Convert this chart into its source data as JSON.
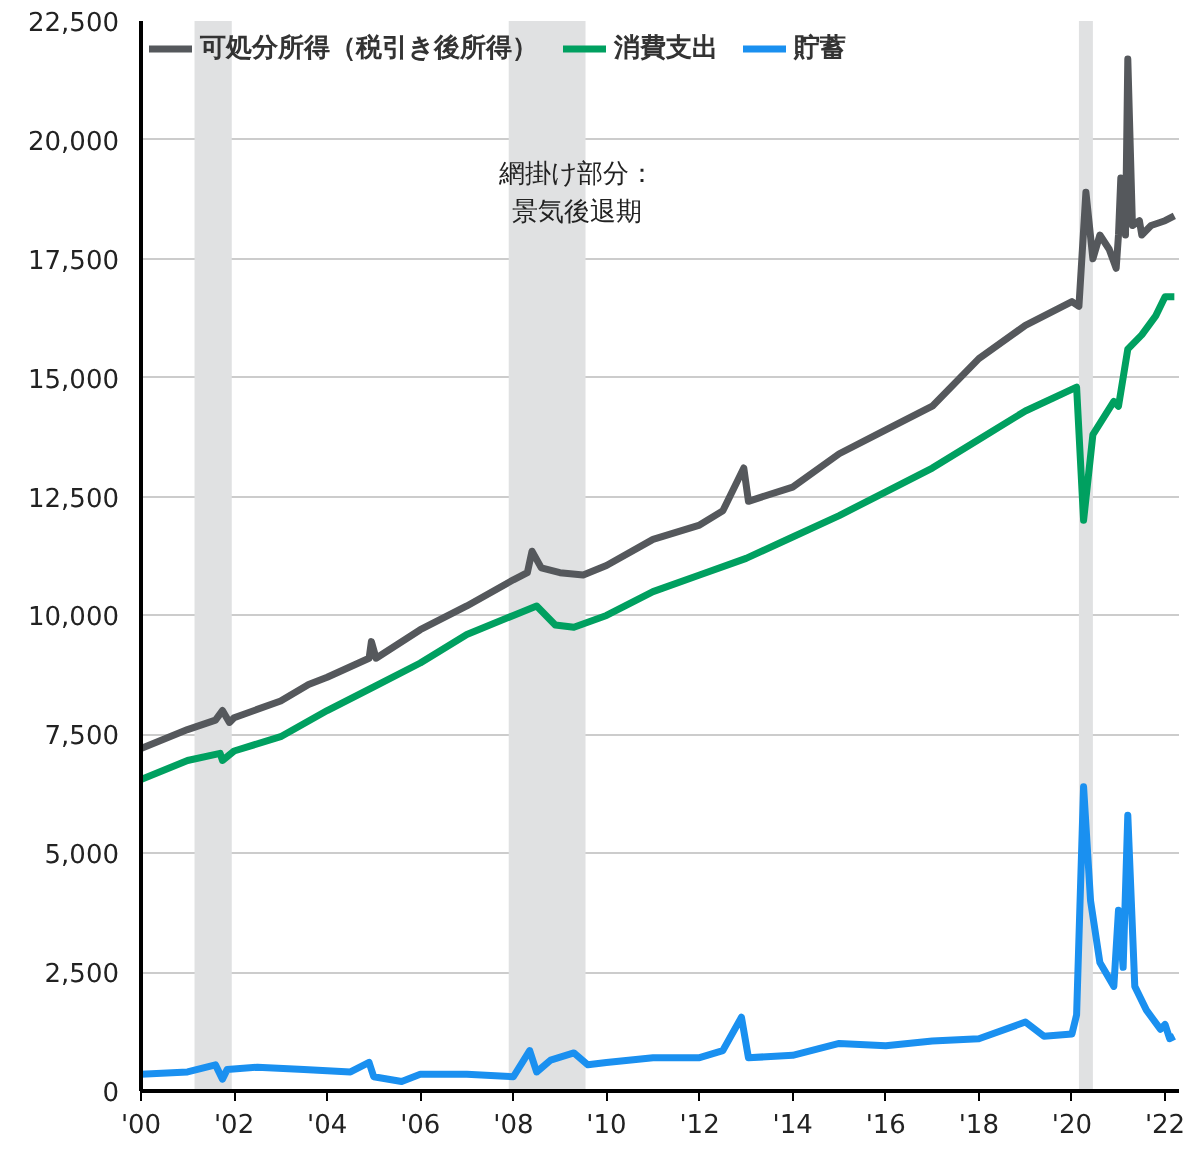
{
  "chart_data": {
    "type": "line",
    "x": [
      2000.0,
      2001.0,
      2001.6,
      2001.75,
      2001.9,
      2002.0,
      2003.0,
      2003.6,
      2004.0,
      2004.9,
      2004.95,
      2005.05,
      2006.0,
      2007.0,
      2008.0,
      2008.3,
      2008.4,
      2008.6,
      2009.0,
      2009.5,
      2010.0,
      2011.0,
      2012.0,
      2012.5,
      2012.95,
      2013.05,
      2014.0,
      2015.0,
      2016.0,
      2017.0,
      2018.0,
      2019.0,
      2020.0,
      2020.15,
      2020.3,
      2020.45,
      2020.6,
      2020.8,
      2020.95,
      2021.0,
      2021.05,
      2021.15,
      2021.2,
      2021.3,
      2021.45,
      2021.5,
      2021.7,
      2022.0,
      2022.2
    ],
    "series": [
      {
        "name": "可処分所得（税引き後所得）",
        "color": "#55585c",
        "values": [
          7200,
          7600,
          7800,
          8000,
          7750,
          7850,
          8200,
          8550,
          8700,
          9100,
          9450,
          9100,
          9700,
          10200,
          10750,
          10900,
          11350,
          11000,
          10900,
          10850,
          11050,
          11600,
          11900,
          12200,
          13100,
          12400,
          12700,
          13400,
          13900,
          14400,
          15400,
          16100,
          16600,
          16500,
          18900,
          17500,
          18000,
          17700,
          17300,
          18000,
          19200,
          18000,
          21700,
          18200,
          18300,
          18000,
          18200,
          18300,
          18400
        ]
      },
      {
        "name": "消費支出",
        "color": "#00a060",
        "x": [
          2000.0,
          2001.0,
          2001.7,
          2001.75,
          2002.0,
          2003.0,
          2004.0,
          2005.0,
          2006.0,
          2007.0,
          2008.0,
          2008.5,
          2008.9,
          2009.3,
          2010.0,
          2011.0,
          2012.0,
          2013.0,
          2014.0,
          2015.0,
          2016.0,
          2017.0,
          2018.0,
          2019.0,
          2020.1,
          2020.25,
          2020.45,
          2020.9,
          2021.0,
          2021.2,
          2021.5,
          2021.8,
          2022.0,
          2022.2
        ],
        "values": [
          6550,
          6950,
          7100,
          6950,
          7150,
          7450,
          8000,
          8500,
          9000,
          9600,
          10000,
          10200,
          9800,
          9750,
          10000,
          10500,
          10850,
          11200,
          11650,
          12100,
          12600,
          13100,
          13700,
          14300,
          14800,
          12000,
          13800,
          14500,
          14400,
          15600,
          15900,
          16300,
          16700,
          16700
        ]
      },
      {
        "name": "貯蓄",
        "color": "#1a90f0",
        "x": [
          2000.0,
          2001.0,
          2001.6,
          2001.75,
          2001.85,
          2002.5,
          2003.5,
          2004.5,
          2004.9,
          2005.0,
          2005.6,
          2006.0,
          2007.0,
          2008.0,
          2008.35,
          2008.5,
          2008.8,
          2009.3,
          2009.6,
          2010.0,
          2011.0,
          2012.0,
          2012.5,
          2012.9,
          2013.05,
          2014.0,
          2015.0,
          2016.0,
          2017.0,
          2018.0,
          2019.0,
          2019.4,
          2020.0,
          2020.1,
          2020.25,
          2020.4,
          2020.6,
          2020.9,
          2021.0,
          2021.1,
          2021.2,
          2021.35,
          2021.6,
          2021.9,
          2022.0,
          2022.1,
          2022.2
        ],
        "values": [
          350,
          400,
          550,
          250,
          450,
          500,
          450,
          400,
          600,
          300,
          200,
          350,
          350,
          300,
          850,
          400,
          650,
          800,
          550,
          600,
          700,
          700,
          850,
          1550,
          700,
          750,
          1000,
          950,
          1050,
          1100,
          1450,
          1150,
          1200,
          1600,
          6400,
          4000,
          2700,
          2200,
          3800,
          2600,
          5800,
          2200,
          1700,
          1300,
          1400,
          1100,
          1150
        ]
      }
    ],
    "xlim": [
      2000,
      2022.3
    ],
    "xticks": [
      {
        "value": 2000,
        "label": "'00"
      },
      {
        "value": 2002,
        "label": "'02"
      },
      {
        "value": 2004,
        "label": "'04"
      },
      {
        "value": 2006,
        "label": "'06"
      },
      {
        "value": 2008,
        "label": "'08"
      },
      {
        "value": 2010,
        "label": "'10"
      },
      {
        "value": 2012,
        "label": "'12"
      },
      {
        "value": 2014,
        "label": "'14"
      },
      {
        "value": 2016,
        "label": "'16"
      },
      {
        "value": 2018,
        "label": "'18"
      },
      {
        "value": 2020,
        "label": "'20"
      },
      {
        "value": 2022,
        "label": "'22"
      }
    ],
    "ylim": [
      0,
      22500
    ],
    "yticks": [
      {
        "value": 0,
        "label": "0"
      },
      {
        "value": 2500,
        "label": "2,500"
      },
      {
        "value": 5000,
        "label": "5,000"
      },
      {
        "value": 7500,
        "label": "7,500"
      },
      {
        "value": 10000,
        "label": "10,000"
      },
      {
        "value": 12500,
        "label": "12,500"
      },
      {
        "value": 15000,
        "label": "15,000"
      },
      {
        "value": 17500,
        "label": "17,500"
      },
      {
        "value": 20000,
        "label": "20,000"
      },
      {
        "value": 22500,
        "label": "22,500"
      }
    ],
    "bands": [
      {
        "axis": "x",
        "from": 2001.15,
        "to": 2001.95,
        "color": "#e0e1e2"
      },
      {
        "axis": "x",
        "from": 2007.9,
        "to": 2009.55,
        "color": "#e0e1e2"
      },
      {
        "axis": "x",
        "from": 2020.15,
        "to": 2020.45,
        "color": "#e0e1e2"
      }
    ],
    "annotations": [
      "網掛け部分：",
      "景気後退期"
    ],
    "grid": "y",
    "legend": "top left",
    "marker": "none",
    "line_style": "solid"
  }
}
